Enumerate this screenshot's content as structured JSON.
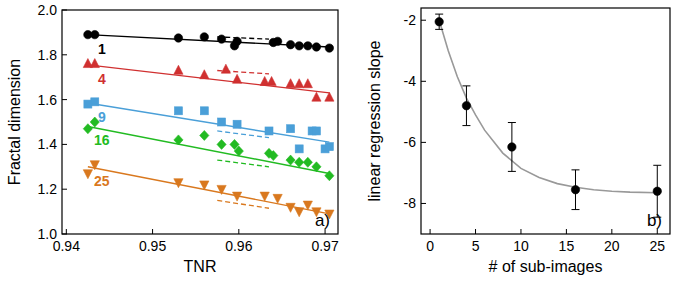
{
  "chart_data": [
    {
      "type": "scatter",
      "annotation": "a)",
      "x_label": "TNR",
      "y_label": "Fractal dimension",
      "xlim": [
        0.9395,
        0.9715
      ],
      "ylim": [
        1.0,
        2.0
      ],
      "xticks": [
        0.94,
        0.95,
        0.96,
        0.97
      ],
      "yticks": [
        {
          "value": 1.0,
          "label": "1.0"
        },
        1.2,
        1.4,
        1.6,
        1.8,
        {
          "value": 2.0,
          "label": "2.0"
        }
      ],
      "series": [
        {
          "name": "1",
          "color": "#000000",
          "marker": "circle",
          "x": [
            0.9425,
            0.9433,
            0.953,
            0.956,
            0.958,
            0.9595,
            0.9598,
            0.964,
            0.9645,
            0.966,
            0.967,
            0.968,
            0.969,
            0.9705
          ],
          "values": [
            1.89,
            1.89,
            1.875,
            1.88,
            1.87,
            1.84,
            1.86,
            1.855,
            1.86,
            1.845,
            1.84,
            1.84,
            1.835,
            1.83
          ],
          "fit": {
            "x": [
              0.9425,
              0.9705
            ],
            "values": [
              1.89,
              1.835
            ]
          },
          "dashed_line": {
            "x": [
              0.9575,
              0.9635
            ],
            "values": [
              1.88,
              1.87
            ]
          }
        },
        {
          "name": "4",
          "color": "#d03030",
          "marker": "triangle-up",
          "x": [
            0.9425,
            0.9433,
            0.953,
            0.956,
            0.9585,
            0.9598,
            0.963,
            0.9638,
            0.966,
            0.967,
            0.968,
            0.969,
            0.9705
          ],
          "values": [
            1.76,
            1.76,
            1.73,
            1.71,
            1.735,
            1.69,
            1.68,
            1.68,
            1.67,
            1.67,
            1.67,
            1.61,
            1.61
          ],
          "fit": {
            "x": [
              0.9425,
              0.9705
            ],
            "values": [
              1.755,
              1.63
            ]
          },
          "dashed_line": {
            "x": [
              0.9575,
              0.9635
            ],
            "values": [
              1.73,
              1.715
            ]
          }
        },
        {
          "name": "9",
          "color": "#4a9fd8",
          "marker": "square",
          "x": [
            0.9425,
            0.9433,
            0.953,
            0.956,
            0.958,
            0.9598,
            0.9635,
            0.966,
            0.967,
            0.9685,
            0.969,
            0.97,
            0.9705
          ],
          "values": [
            1.58,
            1.59,
            1.55,
            1.55,
            1.5,
            1.49,
            1.46,
            1.47,
            1.38,
            1.46,
            1.46,
            1.38,
            1.39
          ],
          "fit": {
            "x": [
              0.9425,
              0.9705
            ],
            "values": [
              1.585,
              1.41
            ]
          },
          "dashed_line": {
            "x": [
              0.9575,
              0.9635
            ],
            "values": [
              1.46,
              1.43
            ]
          }
        },
        {
          "name": "16",
          "color": "#22bb22",
          "marker": "diamond",
          "x": [
            0.9425,
            0.9433,
            0.953,
            0.956,
            0.958,
            0.9595,
            0.96,
            0.9635,
            0.964,
            0.966,
            0.967,
            0.968,
            0.969,
            0.9705
          ],
          "values": [
            1.47,
            1.5,
            1.42,
            1.44,
            1.4,
            1.4,
            1.37,
            1.36,
            1.35,
            1.33,
            1.32,
            1.32,
            1.3,
            1.26
          ],
          "fit": {
            "x": [
              0.9425,
              0.9705
            ],
            "values": [
              1.48,
              1.27
            ]
          },
          "dashed_line": {
            "x": [
              0.9575,
              0.9635
            ],
            "values": [
              1.33,
              1.3
            ]
          }
        },
        {
          "name": "25",
          "color": "#d9781e",
          "marker": "triangle-down",
          "x": [
            0.9425,
            0.9433,
            0.953,
            0.956,
            0.958,
            0.9598,
            0.963,
            0.9645,
            0.966,
            0.967,
            0.968,
            0.969,
            0.9705
          ],
          "values": [
            1.27,
            1.31,
            1.23,
            1.22,
            1.2,
            1.17,
            1.17,
            1.16,
            1.12,
            1.1,
            1.13,
            1.1,
            1.09
          ],
          "fit": {
            "x": [
              0.9425,
              0.9705
            ],
            "values": [
              1.3,
              1.09
            ]
          },
          "dashed_line": {
            "x": [
              0.9575,
              0.9635
            ],
            "values": [
              1.15,
              1.115
            ]
          }
        }
      ]
    },
    {
      "type": "scatter",
      "annotation": "b)",
      "x_label": "# of sub-images",
      "y_label": "linear regression slope",
      "xlim": [
        -1,
        26.4
      ],
      "ylim": [
        -9,
        -1.6
      ],
      "xticks": [
        0,
        5,
        10,
        15,
        20,
        25
      ],
      "yticks": [
        -8,
        -6,
        -4,
        -2
      ],
      "series": [
        {
          "color": "#000000",
          "marker": "circle",
          "x": [
            1,
            4,
            9,
            16,
            25
          ],
          "values": [
            -2.05,
            -4.8,
            -6.15,
            -7.55,
            -7.6
          ],
          "errors": [
            0.25,
            0.65,
            0.8,
            0.65,
            0.85
          ]
        }
      ],
      "fit": {
        "color": "#999999",
        "x": [
          1,
          2,
          3,
          4,
          5,
          6,
          8,
          10,
          12,
          14,
          16,
          18,
          20,
          22,
          25
        ],
        "values": [
          -2.0,
          -3.0,
          -3.85,
          -4.55,
          -5.1,
          -5.6,
          -6.35,
          -6.85,
          -7.15,
          -7.35,
          -7.47,
          -7.55,
          -7.6,
          -7.63,
          -7.65
        ]
      }
    }
  ]
}
